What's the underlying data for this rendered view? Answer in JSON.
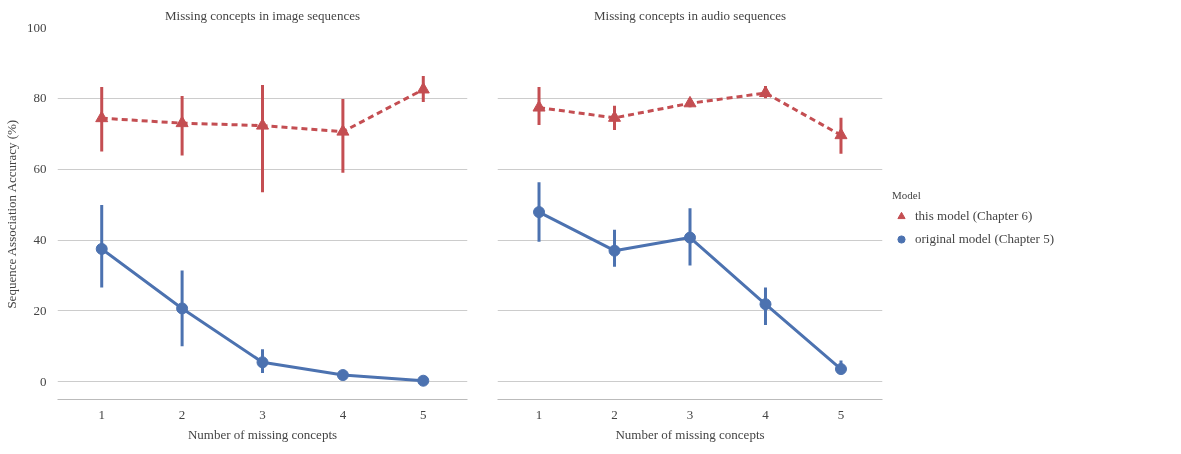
{
  "chart_data": [
    {
      "type": "line",
      "title": "Missing concepts in image sequences",
      "xlabel": "Number of missing concepts",
      "ylabel": "Sequence Association Accuracy (%)",
      "x": [
        1,
        2,
        3,
        4,
        5
      ],
      "xlim": [
        0.45,
        5.55
      ],
      "xticks": [
        1,
        2,
        3,
        4,
        5
      ],
      "ylim": [
        -5,
        100
      ],
      "yticks": [
        0,
        20,
        40,
        60,
        80,
        100
      ],
      "grid": "y",
      "legend": false,
      "series": [
        {
          "color": "#c44e52",
          "marker": "triangle",
          "line_style": "dashed",
          "values": [
            74.4,
            73.0,
            72.3,
            70.6,
            82.5
          ],
          "errors": [
            [
              65.0,
              83.2
            ],
            [
              63.9,
              80.7
            ],
            [
              53.5,
              83.8
            ],
            [
              59.0,
              79.8
            ],
            [
              79.0,
              86.3
            ]
          ]
        },
        {
          "color": "#4c72b0",
          "marker": "circle",
          "line_style": "solid",
          "values": [
            37.5,
            20.7,
            5.5,
            1.9,
            0.3
          ],
          "errors": [
            [
              26.6,
              49.9
            ],
            [
              10.0,
              31.4
            ],
            [
              2.5,
              9.2
            ],
            null,
            null
          ]
        }
      ]
    },
    {
      "type": "line",
      "title": "Missing concepts in audio sequences",
      "xlabel": "Number of missing concepts",
      "x": [
        1,
        2,
        3,
        4,
        5
      ],
      "xlim": [
        0.45,
        5.55
      ],
      "xticks": [
        1,
        2,
        3,
        4,
        5
      ],
      "ylim": [
        -5,
        100
      ],
      "yticks": [
        0,
        20,
        40,
        60,
        80,
        100
      ],
      "grid": "y",
      "tick_labels": "x",
      "legend": "right",
      "legend_title": "Model",
      "series": [
        {
          "name": "this model (Chapter 6)",
          "color": "#c44e52",
          "marker": "triangle",
          "line_style": "dashed",
          "values": [
            77.4,
            74.5,
            78.6,
            81.5,
            69.6
          ],
          "errors": [
            [
              72.5,
              83.2
            ],
            [
              71.1,
              77.9
            ],
            [
              77.5,
              80.0
            ],
            [
              80.0,
              83.5
            ],
            [
              64.4,
              74.5
            ]
          ]
        },
        {
          "name": "original model (Chapter 5)",
          "color": "#4c72b0",
          "marker": "circle",
          "line_style": "solid",
          "values": [
            47.9,
            37.0,
            40.7,
            21.9,
            3.6
          ],
          "errors": [
            [
              39.5,
              56.3
            ],
            [
              32.5,
              42.9
            ],
            [
              32.8,
              49.0
            ],
            [
              16.0,
              26.6
            ],
            [
              2.5,
              6.0
            ]
          ]
        }
      ]
    }
  ]
}
